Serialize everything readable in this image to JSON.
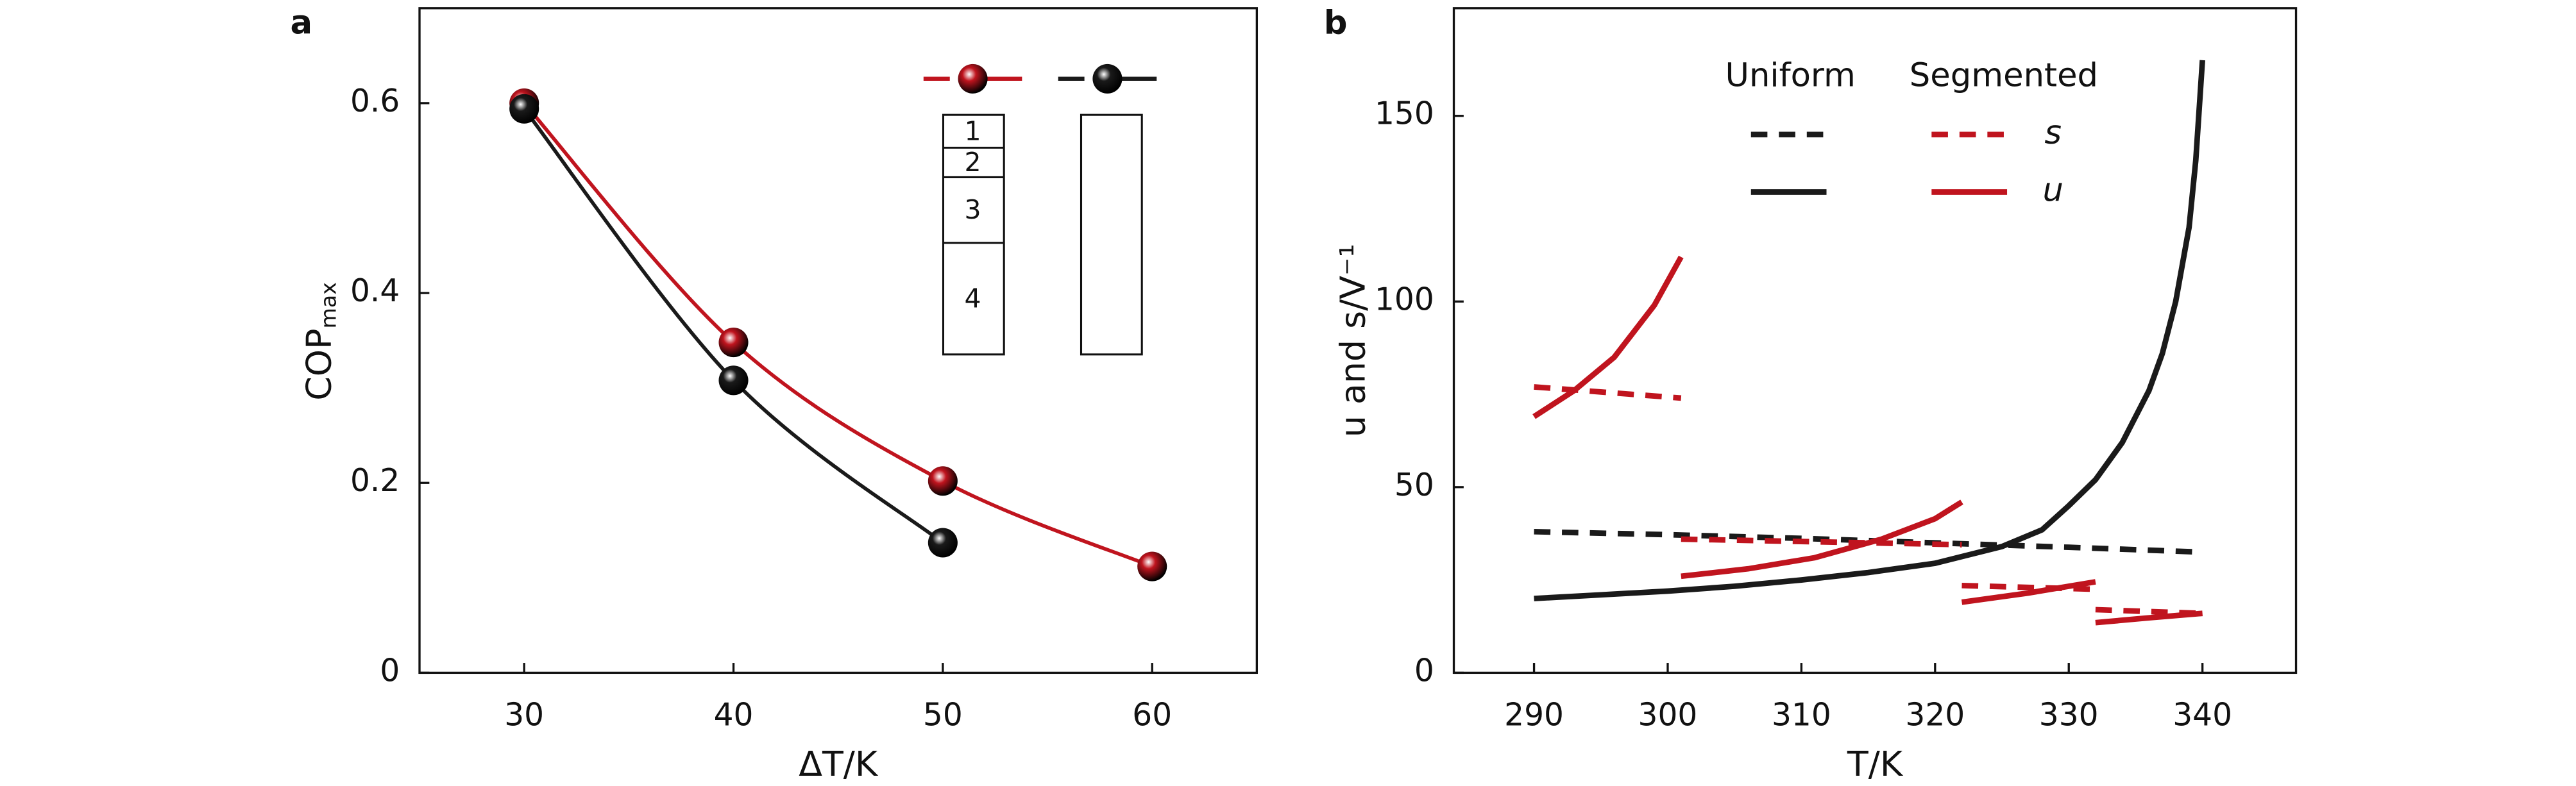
{
  "chart_data": [
    {
      "type": "line",
      "panel_label": "a",
      "xlabel": "ΔT/K",
      "ylabel": "COP",
      "ylabel_sub": "max",
      "xlim": [
        25,
        65
      ],
      "xticks": [
        30,
        40,
        50,
        60
      ],
      "ylim": [
        0,
        0.7
      ],
      "yticks": [
        0,
        0.2,
        0.4,
        0.6
      ],
      "markers": true,
      "smooth": true,
      "series": [
        {
          "color": "#c0141e",
          "x": [
            30,
            40,
            50,
            60
          ],
          "values": [
            0.6,
            0.348,
            0.202,
            0.112
          ]
        },
        {
          "color": "#1a1a1a",
          "x": [
            30,
            40,
            50
          ],
          "values": [
            0.594,
            0.308,
            0.137
          ]
        }
      ],
      "segment_labels": [
        "1",
        "2",
        "3",
        "4"
      ]
    },
    {
      "type": "line",
      "panel_label": "b",
      "xlabel": "T/K",
      "ylabel": "u and s/V⁻¹",
      "xlim": [
        284,
        347
      ],
      "xticks": [
        290,
        300,
        310,
        320,
        330,
        340
      ],
      "ylim": [
        0,
        179
      ],
      "yticks": [
        0,
        50,
        100,
        150
      ],
      "markers": false,
      "smooth": false,
      "legend": {
        "columns": [
          "Uniform",
          "Segmented"
        ],
        "rows": [
          "s",
          "u"
        ]
      },
      "series": [
        {
          "color": "#1a1a1a",
          "dash": true,
          "x": [
            290,
            300,
            310,
            320,
            330,
            340
          ],
          "values": [
            38,
            37.2,
            36.2,
            35,
            33.8,
            32.5
          ]
        },
        {
          "color": "#1a1a1a",
          "dash": false,
          "x": [
            290,
            295,
            300,
            305,
            310,
            315,
            320,
            325,
            328,
            330,
            332,
            334,
            336,
            337,
            338,
            339,
            339.5,
            340
          ],
          "values": [
            20,
            21,
            22,
            23.3,
            25,
            27,
            29.5,
            34,
            38.5,
            45,
            52,
            62,
            76,
            86,
            100,
            120,
            138,
            165
          ]
        },
        {
          "color": "#c0141e",
          "dash": true,
          "x": [
            290,
            301,
            null,
            301,
            322,
            null,
            322,
            332,
            null,
            332,
            340
          ],
          "values": [
            77,
            74,
            null,
            36,
            34.5,
            null,
            23.5,
            22.5,
            null,
            17,
            16
          ]
        },
        {
          "color": "#c0141e",
          "dash": false,
          "x": [
            290,
            293,
            296,
            299,
            301,
            null,
            301,
            306,
            311,
            316,
            320,
            322,
            null,
            322,
            327,
            332,
            null,
            332,
            336,
            340
          ],
          "values": [
            69,
            76,
            85,
            99,
            112,
            null,
            26,
            28,
            31,
            36,
            41.5,
            46,
            null,
            19,
            21.5,
            24.5,
            null,
            13.5,
            14.8,
            16
          ]
        }
      ]
    }
  ]
}
